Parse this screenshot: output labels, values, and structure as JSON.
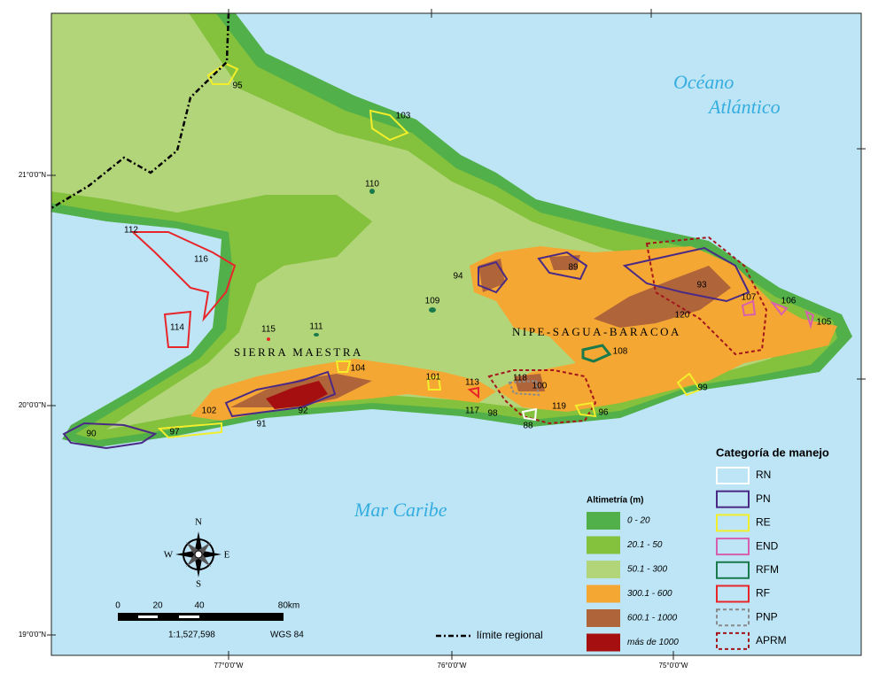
{
  "map_labels": {
    "ocean_north": [
      "Océano",
      "Atlántico"
    ],
    "sea_south": "Mar Caribe",
    "range_west": "SIERRA MAESTRA",
    "range_east": "NIPE-SAGUA-BARACOA"
  },
  "area_numbers": [
    95,
    103,
    110,
    112,
    116,
    94,
    89,
    93,
    107,
    106,
    105,
    109,
    111,
    115,
    114,
    120,
    108,
    104,
    101,
    113,
    118,
    100,
    99,
    102,
    91,
    92,
    117,
    98,
    88,
    119,
    96,
    90,
    97
  ],
  "graticule": {
    "latitudes": [
      "21°0'0\"N",
      "20°0'0\"N",
      "19°0'0\"N"
    ],
    "longitudes": [
      "77°0'0\"W",
      "76°0'0\"W",
      "75°0'0\"W"
    ]
  },
  "altimetry_legend": {
    "title": "Altimetría (m)",
    "items": [
      {
        "label": "0 - 20",
        "color": "#52b04a"
      },
      {
        "label": "20.1 - 50",
        "color": "#84c13d"
      },
      {
        "label": "50.1 - 300",
        "color": "#b3d57a"
      },
      {
        "label": "300.1 - 600",
        "color": "#f5a733"
      },
      {
        "label": "600.1 - 1000",
        "color": "#b0643a"
      },
      {
        "label": "más de 1000",
        "color": "#a50f0f"
      }
    ]
  },
  "management_legend": {
    "title": "Categoría de manejo",
    "items": [
      {
        "label": "RN",
        "color": "#ffffff",
        "dashed": false
      },
      {
        "label": "PN",
        "color": "#4b2a86",
        "dashed": false
      },
      {
        "label": "RE",
        "color": "#f2ee2c",
        "dashed": false
      },
      {
        "label": "END",
        "color": "#d85fb0",
        "dashed": false
      },
      {
        "label": "RFM",
        "color": "#1a7a4c",
        "dashed": false
      },
      {
        "label": "RF",
        "color": "#e8262a",
        "dashed": false
      },
      {
        "label": "PNP",
        "color": "#8a8a8a",
        "dashed": true
      },
      {
        "label": "APRM",
        "color": "#a3161b",
        "dashed": true
      }
    ]
  },
  "scale_bar": {
    "ticks": [
      "0",
      "20",
      "40",
      "80km"
    ],
    "ratio": "1:1,527,598",
    "datum": "WGS 84"
  },
  "compass": [
    "N",
    "E",
    "S",
    "W"
  ],
  "boundary_legend": "límite regional"
}
